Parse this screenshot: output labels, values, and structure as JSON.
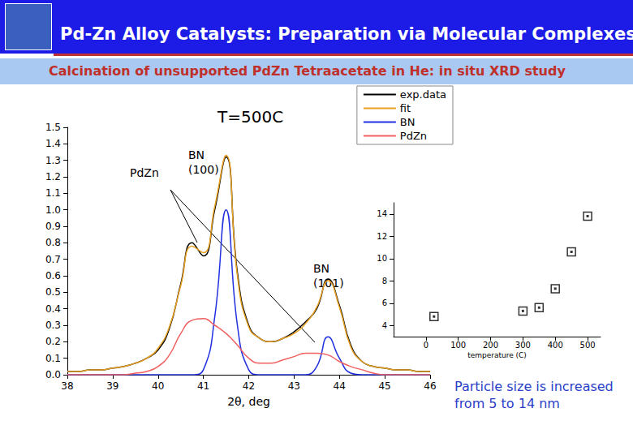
{
  "slide": {
    "title": "Pd-Zn Alloy Catalysts: Preparation via Molecular Complexes",
    "subtitle": "Calcination of unsupported PdZn Tetraacetate in He: in situ XRD study",
    "note": "Particle size is increased from 5 to 14 nm"
  },
  "chart_data": [
    {
      "type": "line",
      "title": "T=500C",
      "xlabel": "2θ, deg",
      "annotations": [
        "PdZn",
        "BN (100)",
        "BN (101)"
      ],
      "x": [
        38,
        38.25,
        38.5,
        38.75,
        39,
        39.25,
        39.5,
        39.75,
        40,
        40.25,
        40.5,
        40.75,
        41,
        41.25,
        41.5,
        41.75,
        42,
        42.25,
        42.5,
        42.75,
        43,
        43.25,
        43.5,
        43.75,
        44,
        44.25,
        44.5,
        44.75,
        45,
        45.25,
        45.5,
        45.75,
        46
      ],
      "series": [
        {
          "name": "exp.data",
          "color": "#000000",
          "values": [
            0.02,
            0.02,
            0.03,
            0.03,
            0.04,
            0.05,
            0.07,
            0.1,
            0.15,
            0.28,
            0.55,
            0.8,
            0.72,
            1.0,
            1.32,
            0.62,
            0.3,
            0.22,
            0.2,
            0.22,
            0.26,
            0.32,
            0.4,
            0.58,
            0.42,
            0.18,
            0.08,
            0.05,
            0.04,
            0.03,
            0.03,
            0.02,
            0.02
          ]
        },
        {
          "name": "fit",
          "color": "#e8a020",
          "values": [
            0.02,
            0.02,
            0.03,
            0.03,
            0.04,
            0.05,
            0.07,
            0.1,
            0.16,
            0.29,
            0.54,
            0.78,
            0.74,
            1.02,
            1.33,
            0.6,
            0.29,
            0.22,
            0.2,
            0.22,
            0.25,
            0.31,
            0.41,
            0.57,
            0.41,
            0.17,
            0.08,
            0.05,
            0.04,
            0.03,
            0.03,
            0.02,
            0.02
          ]
        },
        {
          "name": "BN",
          "color": "#2030e0",
          "values": [
            0,
            0,
            0,
            0,
            0,
            0,
            0,
            0,
            0,
            0,
            0,
            0,
            0.03,
            0.35,
            1.0,
            0.3,
            0.03,
            0,
            0,
            0,
            0,
            0,
            0.05,
            0.23,
            0.1,
            0.01,
            0,
            0,
            0,
            0,
            0,
            0,
            0
          ]
        },
        {
          "name": "PdZn",
          "color": "#f06060",
          "values": [
            0,
            0,
            0,
            0,
            0,
            0,
            0.01,
            0.02,
            0.05,
            0.12,
            0.25,
            0.33,
            0.34,
            0.3,
            0.25,
            0.18,
            0.1,
            0.07,
            0.07,
            0.09,
            0.11,
            0.13,
            0.13,
            0.12,
            0.08,
            0.05,
            0.03,
            0.01,
            0,
            0,
            0,
            0,
            0
          ]
        }
      ],
      "xlim": [
        38,
        46
      ],
      "xticks": [
        38,
        39,
        40,
        41,
        42,
        43,
        44,
        45,
        46
      ],
      "ylim": [
        0,
        1.5
      ],
      "yticks": [
        {
          "value": 0,
          "label": "0.0"
        },
        0.1,
        0.2,
        0.3,
        0.4,
        0.5,
        0.6,
        0.7,
        0.8,
        0.9,
        {
          "value": 1,
          "label": "1.0"
        },
        1.1,
        1.2,
        1.3,
        1.4,
        1.5
      ],
      "legend": "top-right",
      "grid": false
    },
    {
      "type": "scatter",
      "xlabel": "temperature (C)",
      "x": [
        25,
        300,
        350,
        400,
        450,
        500
      ],
      "values": [
        4.8,
        5.3,
        5.6,
        7.3,
        10.6,
        13.8
      ],
      "color": "#000000",
      "marker": "square",
      "xlim": [
        -100,
        540
      ],
      "xticks": [
        0,
        100,
        200,
        300,
        400,
        500
      ],
      "ylim": [
        3,
        15
      ],
      "yticks": [
        4,
        6,
        8,
        10,
        12,
        14
      ],
      "grid": false
    }
  ]
}
